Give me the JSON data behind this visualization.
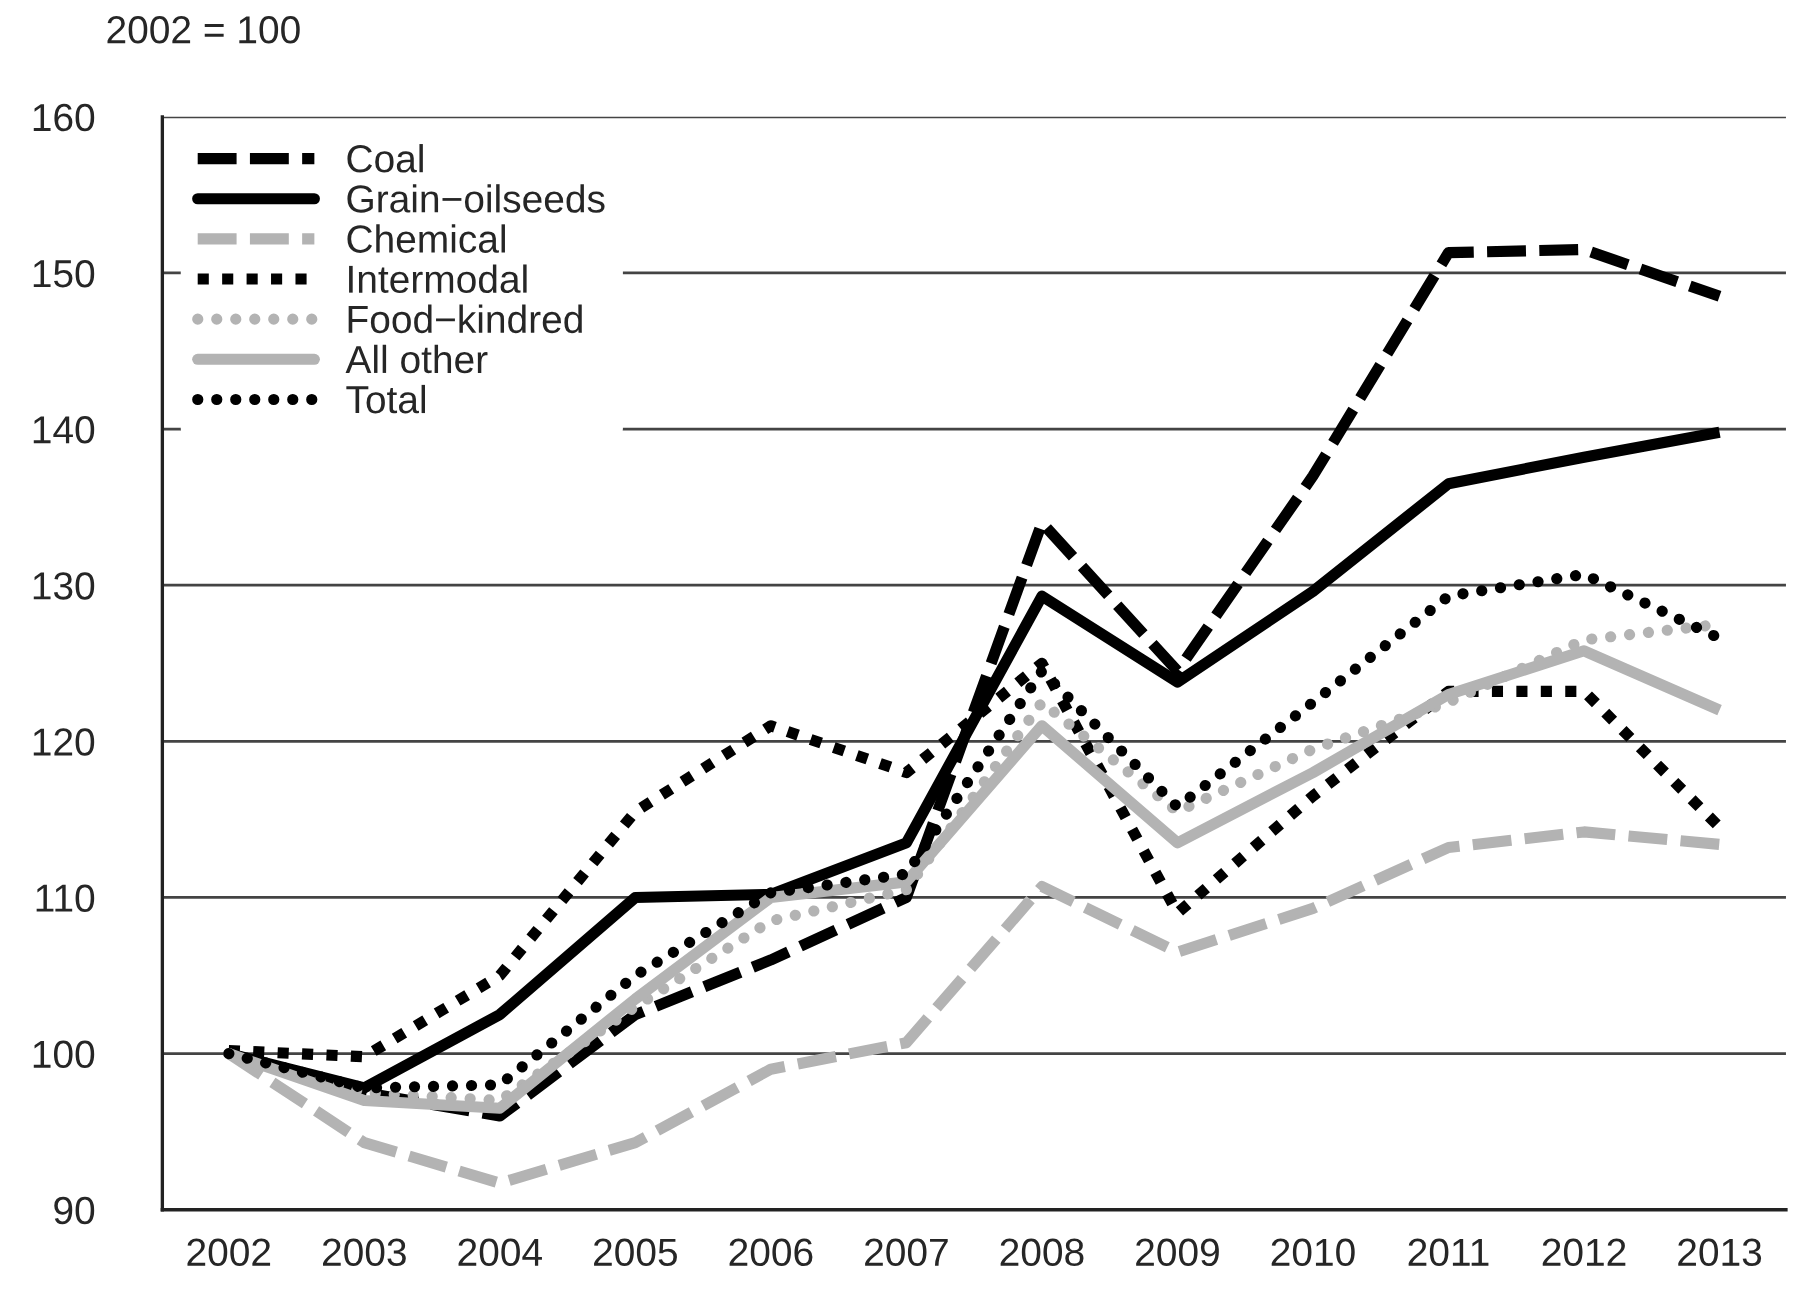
{
  "chart_data": {
    "type": "line",
    "ylabel": "2002 = 100",
    "categories": [
      "2002",
      "2003",
      "2004",
      "2005",
      "2006",
      "2007",
      "2008",
      "2009",
      "2010",
      "2011",
      "2012",
      "2013"
    ],
    "series": [
      {
        "name": "Coal",
        "color": "#000000",
        "line_style": "dashed",
        "values": [
          100,
          97.5,
          96,
          102.5,
          106,
          110,
          134,
          124.5,
          137,
          151.3,
          151.5,
          148.5
        ]
      },
      {
        "name": "Grain−oilseeds",
        "color": "#000000",
        "line_style": "solid",
        "values": [
          100,
          97.8,
          102.5,
          110,
          110.2,
          113.5,
          129.3,
          123.8,
          129.6,
          136.5,
          138.2,
          139.8
        ]
      },
      {
        "name": "Chemical",
        "color": "#b3b3b3",
        "line_style": "dashed",
        "values": [
          100,
          94.3,
          91.7,
          94.3,
          99,
          100.7,
          110.7,
          106.5,
          109.3,
          113.2,
          114.2,
          113.4
        ]
      },
      {
        "name": "Intermodal",
        "color": "#000000",
        "line_style": "dotted",
        "values": [
          100.2,
          99.8,
          105,
          115.5,
          121,
          118,
          125,
          109,
          116.5,
          123.2,
          123.2,
          114.5
        ]
      },
      {
        "name": "Food−kindred",
        "color": "#b3b3b3",
        "line_style": "dotted",
        "values": [
          100,
          97.5,
          97,
          103,
          108.5,
          110.5,
          122.5,
          115.5,
          119.5,
          122.5,
          126.5,
          127.5
        ]
      },
      {
        "name": "All other",
        "color": "#b3b3b3",
        "line_style": "solid",
        "values": [
          100,
          97,
          96.5,
          103.5,
          110,
          111,
          121,
          113.5,
          118,
          123,
          125.8,
          122
        ]
      },
      {
        "name": "Total",
        "color": "#000000",
        "line_style": "dotted",
        "values": [
          100,
          97.8,
          98,
          105,
          110.3,
          111.5,
          124.5,
          115.8,
          122.5,
          129.3,
          130.7,
          126.6
        ]
      }
    ],
    "ylim": [
      90,
      160
    ],
    "yticks": [
      90,
      100,
      110,
      120,
      130,
      140,
      150,
      160
    ],
    "grid": "y",
    "legend": "top left"
  }
}
